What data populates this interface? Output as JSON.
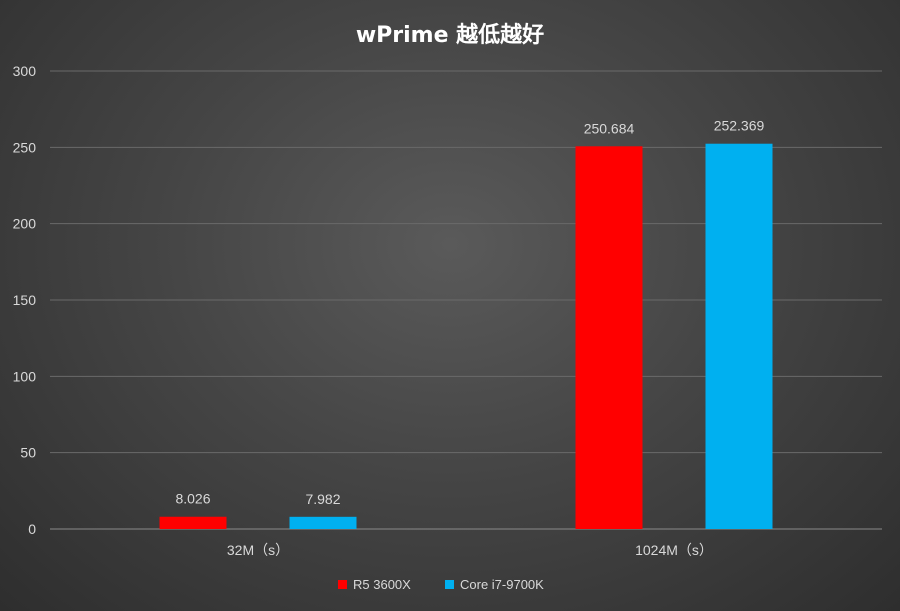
{
  "chart_data": {
    "type": "bar",
    "title": "wPrime 越低越好",
    "categories": [
      "32M（s）",
      "1024M（s）"
    ],
    "series": [
      {
        "name": "R5 3600X",
        "values": [
          8.026,
          250.684
        ],
        "labels": [
          "8.026",
          "250.684"
        ],
        "color": "#ff0000"
      },
      {
        "name": "Core i7-9700K",
        "values": [
          7.982,
          252.369
        ],
        "labels": [
          "7.982",
          "252.369"
        ],
        "color": "#00b0f0"
      }
    ],
    "ylim": [
      0,
      300
    ],
    "yticks": [
      "0",
      "50",
      "100",
      "150",
      "200",
      "250",
      "300"
    ],
    "grid": true,
    "legend": "bottom-center"
  }
}
